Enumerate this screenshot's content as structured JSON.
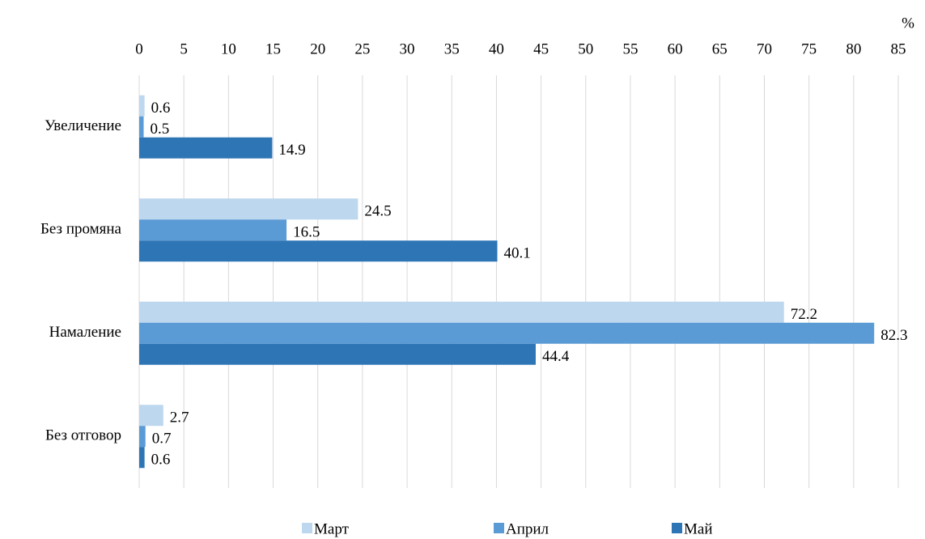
{
  "chart_data": {
    "type": "barh",
    "xlabel": "%",
    "categories": [
      "Увеличение",
      "Без промяна",
      "Намаление",
      "Без отговор"
    ],
    "series": [
      {
        "name": "Март",
        "color": "#bdd7ee",
        "values": [
          0.6,
          24.5,
          72.2,
          2.7
        ]
      },
      {
        "name": "Април",
        "color": "#5b9bd5",
        "values": [
          0.5,
          16.5,
          82.3,
          0.7
        ]
      },
      {
        "name": "Май",
        "color": "#2e75b6",
        "values": [
          14.9,
          40.1,
          44.4,
          0.6
        ]
      }
    ],
    "xlim": [
      0,
      85
    ],
    "xticks": [
      0,
      5,
      10,
      15,
      20,
      25,
      30,
      35,
      40,
      45,
      50,
      55,
      60,
      65,
      70,
      75,
      80,
      85
    ],
    "grid": true,
    "legend": "bottom"
  }
}
